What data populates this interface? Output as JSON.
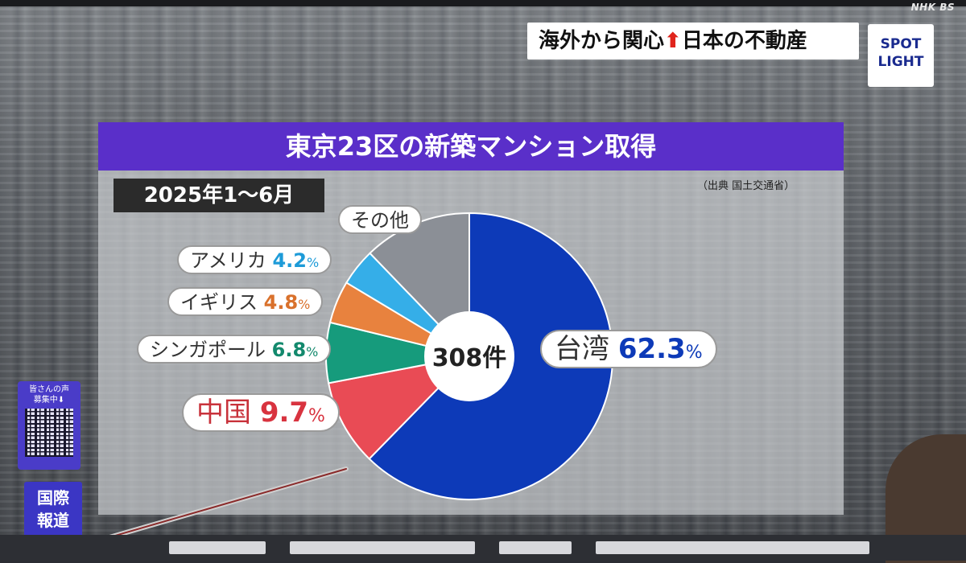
{
  "broadcast": {
    "channel": "NHK BS"
  },
  "headline": {
    "before": "海外から関心",
    "arrow": "⬆",
    "after": "日本の不動産"
  },
  "spotlight": {
    "line1": "SPOT",
    "line2": "LIGHT"
  },
  "side": {
    "qr_line1": "皆さんの声",
    "qr_line2": "募集中⬇",
    "section_line1": "国際",
    "section_line2": "報道"
  },
  "chart_data": {
    "type": "pie",
    "title": "東京23区の新築マンション取得",
    "subtitle": "2025年1～6月",
    "source": "（出典 国土交通省）",
    "center_label": "308件",
    "slices": [
      {
        "label": "台湾",
        "value": 62.3,
        "value_text": "62.3",
        "unit": "%",
        "color": "#0d3ab8"
      },
      {
        "label": "中国",
        "value": 9.7,
        "value_text": "9.7",
        "unit": "%",
        "color": "#e94b55"
      },
      {
        "label": "シンガポール",
        "value": 6.8,
        "value_text": "6.8",
        "unit": "%",
        "color": "#169b7c"
      },
      {
        "label": "イギリス",
        "value": 4.8,
        "value_text": "4.8",
        "unit": "%",
        "color": "#e8823e"
      },
      {
        "label": "アメリカ",
        "value": 4.2,
        "value_text": "4.2",
        "unit": "%",
        "color": "#35aee8"
      },
      {
        "label": "その他",
        "value": 12.2,
        "value_text": "",
        "unit": "",
        "color": "#8b8f96"
      }
    ]
  }
}
